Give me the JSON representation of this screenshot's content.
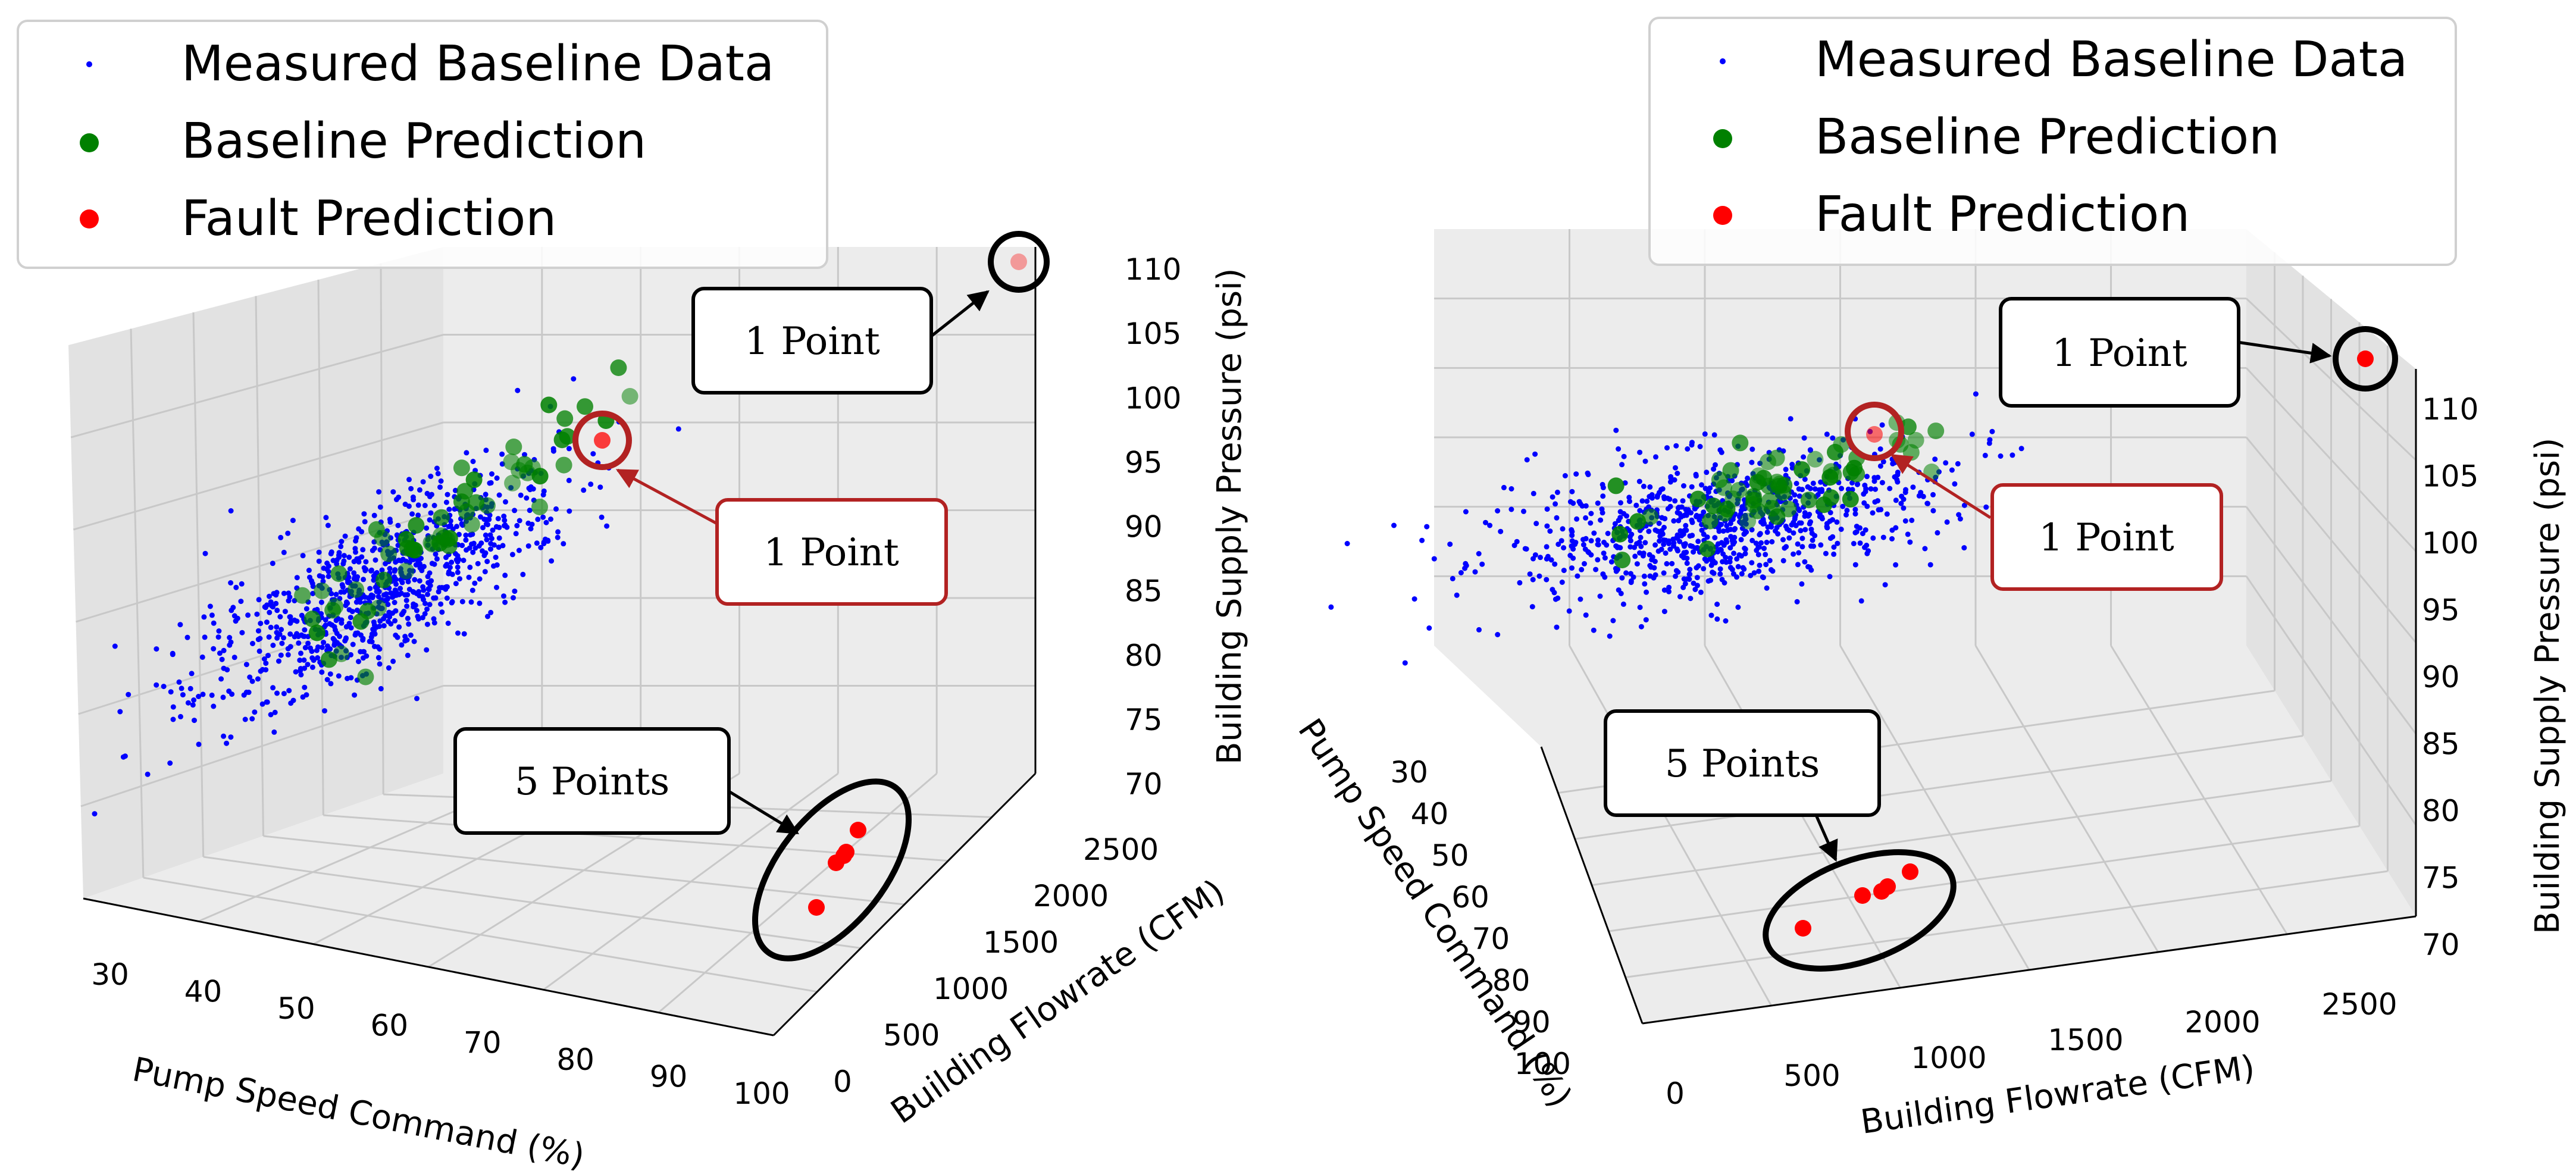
{
  "legend": {
    "items": [
      {
        "label": "Measured Baseline Data",
        "color": "#0000ff",
        "marker": "small-dot"
      },
      {
        "label": "Baseline Prediction",
        "color": "#008000",
        "marker": "dot"
      },
      {
        "label": "Fault Prediction",
        "color": "#ff0000",
        "marker": "dot"
      }
    ]
  },
  "chart_data": [
    {
      "type": "scatter",
      "projection": "3d",
      "x_axis": {
        "label": "Pump Speed Command (%)",
        "ticks": [
          "30",
          "40",
          "50",
          "60",
          "70",
          "80",
          "90",
          "100"
        ],
        "range": [
          25,
          105
        ]
      },
      "y_axis": {
        "label": "Building Flowrate (CFM)",
        "ticks": [
          "0",
          "500",
          "1000",
          "1500",
          "2000",
          "2500"
        ],
        "range": [
          -100,
          2700
        ]
      },
      "z_axis": {
        "label": "Building Supply Pressure (psi)",
        "ticks": [
          "70",
          "75",
          "80",
          "85",
          "90",
          "95",
          "100",
          "105",
          "110"
        ],
        "range": [
          70,
          111
        ]
      },
      "grid": true,
      "legend_position": "top-left",
      "series": [
        {
          "name": "Measured Baseline Data",
          "color": "#0000ff",
          "n_points": 900,
          "x_center": 37,
          "y_center": 2250,
          "z_center": 89
        },
        {
          "name": "Baseline Prediction",
          "color": "#008000",
          "n_points": 60,
          "x_center": 42,
          "y_center": 2300,
          "z_center": 92
        },
        {
          "name": "Fault Prediction",
          "color": "#ff0000",
          "points": [
            {
              "x": 62,
              "y": 2400,
              "z": 97
            },
            {
              "x": 95,
              "y": 2600,
              "z": 110
            },
            {
              "x": 95,
              "y": 900,
              "z": 70
            },
            {
              "x": 97,
              "y": 1000,
              "z": 70
            },
            {
              "x": 97,
              "y": 1100,
              "z": 70
            },
            {
              "x": 98,
              "y": 1200,
              "z": 70
            },
            {
              "x": 99,
              "y": 1300,
              "z": 70
            }
          ]
        }
      ],
      "annotations": [
        {
          "text": "1 Point",
          "color": "#000000"
        },
        {
          "text": "1 Point",
          "color": "#b22222"
        },
        {
          "text": "5 Points",
          "color": "#000000"
        }
      ]
    },
    {
      "type": "scatter",
      "projection": "3d",
      "x_axis": {
        "label": "Pump Speed Command (%)",
        "ticks": [
          "30",
          "40",
          "50",
          "60",
          "70",
          "80",
          "90",
          "100"
        ],
        "range": [
          25,
          105
        ]
      },
      "y_axis": {
        "label": "Building Flowrate (CFM)",
        "ticks": [
          "0",
          "500",
          "1000",
          "1500",
          "2000",
          "2500"
        ],
        "range": [
          -100,
          2700
        ]
      },
      "z_axis": {
        "label": "Building Supply Pressure (psi)",
        "ticks": [
          "70",
          "75",
          "80",
          "85",
          "90",
          "95",
          "100",
          "105",
          "110"
        ],
        "range": [
          70,
          111
        ]
      },
      "grid": true,
      "legend_position": "top-right",
      "series": [
        {
          "name": "Measured Baseline Data",
          "color": "#0000ff",
          "n_points": 900
        },
        {
          "name": "Baseline Prediction",
          "color": "#008000",
          "n_points": 60
        },
        {
          "name": "Fault Prediction",
          "color": "#ff0000",
          "n_points": 7
        }
      ],
      "annotations": [
        {
          "text": "1 Point",
          "color": "#000000"
        },
        {
          "text": "1 Point",
          "color": "#b22222"
        },
        {
          "text": "5 Points",
          "color": "#000000"
        }
      ]
    }
  ]
}
